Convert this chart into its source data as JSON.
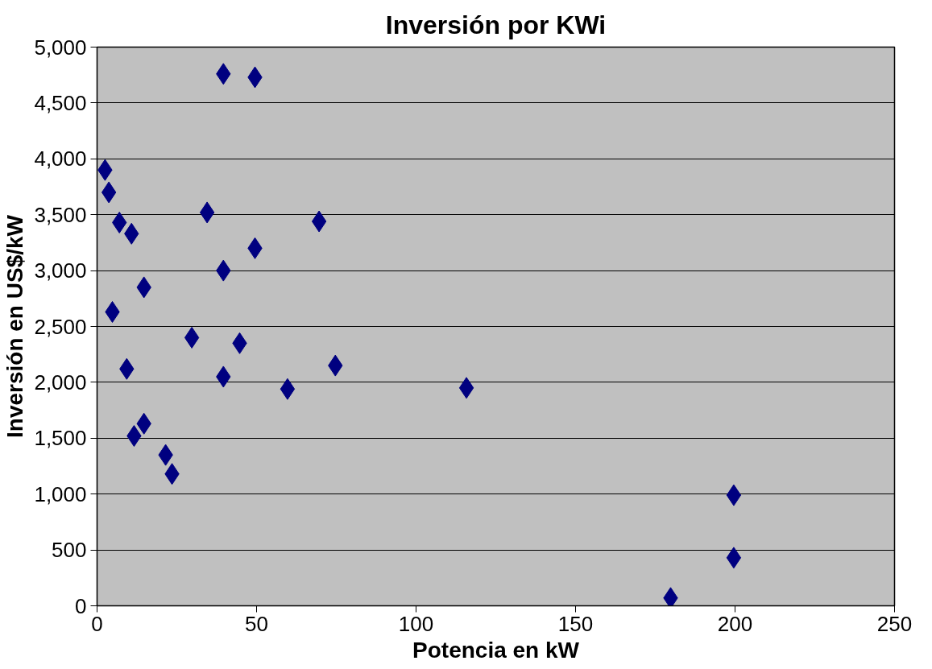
{
  "chart_data": {
    "type": "scatter",
    "title": "Inversión por KWi",
    "xlabel": "Potencia en kW",
    "ylabel": "Inversión en US$/kW",
    "xlim": [
      0,
      250
    ],
    "xticks": [
      0,
      50,
      100,
      150,
      200,
      250
    ],
    "ylim": [
      0,
      5000
    ],
    "yticks": [
      {
        "value": 0,
        "label": "0"
      },
      {
        "value": 500,
        "label": "500"
      },
      {
        "value": 1000,
        "label": "1,000"
      },
      {
        "value": 1500,
        "label": "1,500"
      },
      {
        "value": 2000,
        "label": "2,000"
      },
      {
        "value": 2500,
        "label": "2,500"
      },
      {
        "value": 3000,
        "label": "3,000"
      },
      {
        "value": 3500,
        "label": "3,500"
      },
      {
        "value": 4000,
        "label": "4,000"
      },
      {
        "value": 4500,
        "label": "4,500"
      },
      {
        "value": 5000,
        "label": "5,000"
      }
    ],
    "grid": "y",
    "marker": "diamond",
    "series": [
      {
        "color": "#000080",
        "x": [
          2.5,
          3.7,
          7,
          10.8,
          4.8,
          14.7,
          9.3,
          11.6,
          14.7,
          21.5,
          23.5,
          29.7,
          34.5,
          39.6,
          49.5,
          39.6,
          49.5,
          44.7,
          39.6,
          59.7,
          69.6,
          74.7,
          115.8,
          179.8,
          199.6,
          199.6
        ],
        "values": [
          3900,
          3700,
          3430,
          3330,
          2630,
          2850,
          2120,
          1520,
          1630,
          1350,
          1180,
          2400,
          3520,
          4760,
          4730,
          3000,
          3200,
          2350,
          2050,
          1940,
          3440,
          2150,
          1950,
          70,
          990,
          430
        ]
      }
    ]
  }
}
